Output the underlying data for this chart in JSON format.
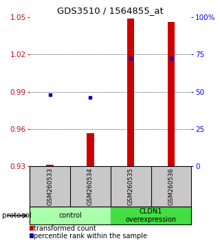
{
  "title": "GDS3510 / 1564855_at",
  "samples": [
    "GSM260533",
    "GSM260534",
    "GSM260535",
    "GSM260536"
  ],
  "transformed_counts": [
    0.9315,
    0.957,
    1.049,
    1.046
  ],
  "baseline": 0.93,
  "percentile_ranks": [
    48.0,
    46.0,
    72.5,
    72.5
  ],
  "ylim_left": [
    0.93,
    1.05
  ],
  "ylim_right": [
    0,
    100
  ],
  "yticks_left": [
    0.93,
    0.96,
    0.99,
    1.02,
    1.05
  ],
  "yticks_right": [
    0,
    25,
    50,
    75,
    100
  ],
  "ytick_labels_left": [
    "0.93",
    "0.96",
    "0.99",
    "1.02",
    "1.05"
  ],
  "ytick_labels_right": [
    "0",
    "25",
    "50",
    "75",
    "100%"
  ],
  "bar_color": "#cc0000",
  "dot_color": "#0000cc",
  "groups": [
    {
      "label": "control",
      "color": "#aaffaa"
    },
    {
      "label": "CLDN1\noverexpression",
      "color": "#44dd44"
    }
  ],
  "protocol_label": "protocol",
  "legend_bar_label": "transformed count",
  "legend_dot_label": "percentile rank within the sample",
  "background_color": "#ffffff",
  "tick_area_bg": "#c8c8c8"
}
